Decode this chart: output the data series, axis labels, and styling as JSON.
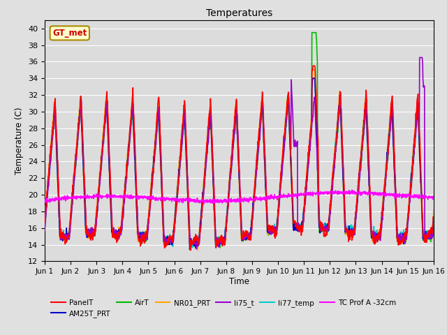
{
  "title": "Temperatures",
  "xlabel": "Time",
  "ylabel": "Temperature (C)",
  "ylim": [
    12,
    41
  ],
  "yticks": [
    12,
    14,
    16,
    18,
    20,
    22,
    24,
    26,
    28,
    30,
    32,
    34,
    36,
    38,
    40
  ],
  "x_labels": [
    "Jun 1",
    "Jun 2",
    "Jun 3",
    "Jun 4",
    "Jun 5",
    "Jun 6",
    "Jun 7",
    "Jun 8",
    "Jun 9",
    "Jun 10",
    "Jun 11",
    "Jun 12",
    "Jun 13",
    "Jun 14",
    "Jun 15",
    "Jun 16"
  ],
  "series_order": [
    "PanelT",
    "AM25T_PRT",
    "AirT",
    "NR01_PRT",
    "li75_t",
    "li77_temp",
    "TC Prof A -32cm"
  ],
  "series": {
    "PanelT": {
      "color": "#FF0000",
      "lw": 1.2
    },
    "AM25T_PRT": {
      "color": "#0000CC",
      "lw": 1.2
    },
    "AirT": {
      "color": "#00BB00",
      "lw": 1.2
    },
    "NR01_PRT": {
      "color": "#FFA500",
      "lw": 1.2
    },
    "li75_t": {
      "color": "#9900CC",
      "lw": 1.2
    },
    "li77_temp": {
      "color": "#00CCCC",
      "lw": 1.2
    },
    "TC Prof A -32cm": {
      "color": "#FF00FF",
      "lw": 1.2
    }
  },
  "gt_met_label": "GT_met",
  "fig_bg": "#E0E0E0",
  "plot_bg": "#DCDCDC",
  "grid_color": "#FFFFFF"
}
